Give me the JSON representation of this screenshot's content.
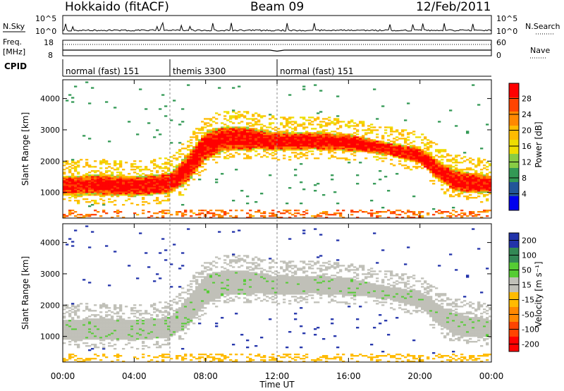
{
  "header": {
    "station": "Hokkaido (fitACF)",
    "beam": "Beam 09",
    "date": "12/Feb/2011"
  },
  "top_panels": {
    "nsky_label": "N.Sky",
    "nsky_ticks": [
      "10^5",
      "10^0"
    ],
    "nsearch_label": "N.Search",
    "nsearch_ticks": [
      "10^5",
      "10^0"
    ],
    "freq_label": "Freq.",
    "freq_unit": "[MHz]",
    "freq_ticks": [
      "18",
      "8"
    ],
    "nave_label": "Nave",
    "nave_ticks": [
      "60",
      "0"
    ],
    "cpid_label": "CPID",
    "cpid_segments": [
      {
        "label": "normal (fast) 151",
        "start_h": 0,
        "end_h": 6
      },
      {
        "label": "themis 3300",
        "start_h": 6,
        "end_h": 12
      },
      {
        "label": "normal (fast) 151",
        "start_h": 12,
        "end_h": 24
      }
    ]
  },
  "power_panel": {
    "ylabel": "Slant Range [km]",
    "colorbar_label": "Power [dB]",
    "colorbar_ticks": [
      "28",
      "24",
      "20",
      "16",
      "12",
      "8",
      "4"
    ],
    "colors": [
      "#ff0000",
      "#ff4400",
      "#ff8800",
      "#ffbb00",
      "#eedd00",
      "#88cc44",
      "#339955",
      "#225599",
      "#0000ee"
    ]
  },
  "velocity_panel": {
    "ylabel": "Slant Range [km]",
    "colorbar_label": "Velocity [m s⁻¹]",
    "colorbar_ticks": [
      "200",
      "100",
      "50",
      "15",
      "-15",
      "-50",
      "-100",
      "-200"
    ],
    "colors": [
      "#2233aa",
      "#338855",
      "#55cc33",
      "#c0c0b8",
      "#ffbb00",
      "#ff8800",
      "#ff4400",
      "#ff0000"
    ]
  },
  "x_axis": {
    "label": "Time UT",
    "ticks": [
      "00:00",
      "04:00",
      "08:00",
      "12:00",
      "16:00",
      "20:00",
      "00:00"
    ]
  },
  "y_axis": {
    "ticks": [
      "4000",
      "3000",
      "2000",
      "1000"
    ]
  },
  "chart_data": [
    {
      "type": "heatmap",
      "title": "Power",
      "ylabel": "Slant Range [km]",
      "xlabel": "",
      "xlim_hours": [
        0,
        24
      ],
      "ylim": [
        180,
        4600
      ],
      "colorbar": "Power [dB]",
      "colorbar_range": [
        0,
        32
      ],
      "main_echo_band": {
        "x_hours": [
          0,
          2,
          4,
          6,
          7,
          8,
          9,
          10,
          11,
          12,
          14,
          16,
          18,
          20,
          21,
          22,
          23,
          24
        ],
        "lower_km": [
          900,
          900,
          850,
          950,
          1300,
          2000,
          2300,
          2300,
          2350,
          2300,
          2350,
          2300,
          2200,
          1900,
          1400,
          1000,
          950,
          1000
        ],
        "upper_km": [
          1500,
          1550,
          1500,
          1600,
          2200,
          2900,
          3100,
          3100,
          3000,
          2900,
          2900,
          2850,
          2600,
          2400,
          2000,
          1700,
          1600,
          1500
        ],
        "peak_dB": 30
      }
    },
    {
      "type": "heatmap",
      "title": "Velocity",
      "ylabel": "Slant Range [km]",
      "xlabel": "Time UT",
      "xlim_hours": [
        0,
        24
      ],
      "ylim": [
        180,
        4600
      ],
      "colorbar": "Velocity [m s⁻¹]",
      "colorbar_range": [
        -200,
        200
      ],
      "main_echo_band": {
        "x_hours": [
          0,
          2,
          4,
          6,
          7,
          8,
          9,
          10,
          11,
          12,
          14,
          16,
          18,
          20,
          21,
          22,
          23,
          24
        ],
        "lower_km": [
          900,
          900,
          850,
          950,
          1300,
          2000,
          2300,
          2300,
          2350,
          2300,
          2350,
          2300,
          2200,
          1900,
          1400,
          1000,
          950,
          1000
        ],
        "upper_km": [
          1500,
          1550,
          1500,
          1600,
          2200,
          2900,
          3100,
          3100,
          3000,
          2900,
          2900,
          2850,
          2600,
          2400,
          2000,
          1700,
          1600,
          1500
        ],
        "typical_velocity": 0
      }
    }
  ]
}
